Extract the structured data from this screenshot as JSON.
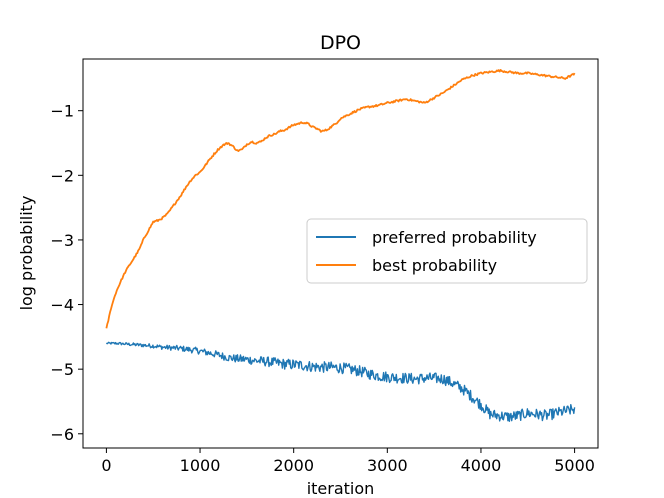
{
  "chart_data": {
    "type": "line",
    "title": "DPO",
    "xlabel": "iteration",
    "ylabel": "log probability",
    "xlim": [
      -250,
      5250
    ],
    "ylim": [
      -6.22,
      -0.2
    ],
    "xticks": [
      0,
      1000,
      2000,
      3000,
      4000,
      5000
    ],
    "xtick_labels": [
      "0",
      "1000",
      "2000",
      "3000",
      "4000",
      "5000"
    ],
    "yticks": [
      -1,
      -2,
      -3,
      -4,
      -5,
      -6
    ],
    "ytick_labels": [
      "−1",
      "−2",
      "−3",
      "−4",
      "−5",
      "−6"
    ],
    "grid": false,
    "legend_position": "center-right",
    "series": [
      {
        "name": "preferred probability",
        "color": "#1f77b4",
        "noisy": true,
        "x": [
          0,
          100,
          200,
          300,
          400,
          500,
          600,
          700,
          800,
          900,
          1000,
          1100,
          1200,
          1300,
          1400,
          1500,
          1600,
          1700,
          1800,
          1900,
          2000,
          2100,
          2200,
          2300,
          2400,
          2500,
          2600,
          2700,
          2800,
          2900,
          3000,
          3100,
          3200,
          3300,
          3400,
          3500,
          3600,
          3700,
          3800,
          3900,
          4000,
          4100,
          4200,
          4300,
          4400,
          4500,
          4600,
          4700,
          4800,
          4900,
          5000
        ],
        "y": [
          -4.6,
          -4.6,
          -4.61,
          -4.62,
          -4.63,
          -4.64,
          -4.66,
          -4.67,
          -4.68,
          -4.7,
          -4.72,
          -4.75,
          -4.78,
          -4.82,
          -4.84,
          -4.85,
          -4.87,
          -4.88,
          -4.9,
          -4.92,
          -4.93,
          -4.94,
          -4.96,
          -4.97,
          -4.97,
          -4.98,
          -5.0,
          -5.03,
          -5.07,
          -5.1,
          -5.12,
          -5.13,
          -5.14,
          -5.15,
          -5.14,
          -5.14,
          -5.15,
          -5.22,
          -5.3,
          -5.42,
          -5.55,
          -5.7,
          -5.72,
          -5.74,
          -5.72,
          -5.68,
          -5.7,
          -5.72,
          -5.68,
          -5.65,
          -5.62
        ]
      },
      {
        "name": "best probability",
        "color": "#ff7f0e",
        "noisy": false,
        "x": [
          0,
          50,
          100,
          150,
          200,
          250,
          300,
          350,
          400,
          450,
          500,
          550,
          600,
          650,
          700,
          750,
          800,
          850,
          900,
          950,
          1000,
          1050,
          1100,
          1150,
          1200,
          1250,
          1300,
          1350,
          1400,
          1450,
          1500,
          1550,
          1600,
          1650,
          1700,
          1750,
          1800,
          1850,
          1900,
          1950,
          2000,
          2050,
          2100,
          2150,
          2200,
          2250,
          2300,
          2350,
          2400,
          2450,
          2500,
          2600,
          2700,
          2800,
          2900,
          3000,
          3100,
          3200,
          3300,
          3400,
          3500,
          3600,
          3700,
          3800,
          3900,
          4000,
          4100,
          4200,
          4300,
          4400,
          4500,
          4600,
          4700,
          4800,
          4900,
          5000
        ],
        "y": [
          -4.38,
          -4.05,
          -3.82,
          -3.65,
          -3.5,
          -3.38,
          -3.27,
          -3.15,
          -2.98,
          -2.85,
          -2.72,
          -2.7,
          -2.66,
          -2.6,
          -2.5,
          -2.4,
          -2.3,
          -2.18,
          -2.08,
          -2.0,
          -1.95,
          -1.86,
          -1.76,
          -1.67,
          -1.59,
          -1.53,
          -1.5,
          -1.55,
          -1.62,
          -1.6,
          -1.52,
          -1.48,
          -1.5,
          -1.48,
          -1.42,
          -1.38,
          -1.36,
          -1.32,
          -1.3,
          -1.26,
          -1.22,
          -1.2,
          -1.18,
          -1.2,
          -1.25,
          -1.28,
          -1.32,
          -1.3,
          -1.25,
          -1.2,
          -1.12,
          -1.05,
          -0.98,
          -0.94,
          -0.92,
          -0.88,
          -0.85,
          -0.82,
          -0.85,
          -0.88,
          -0.8,
          -0.72,
          -0.62,
          -0.52,
          -0.46,
          -0.42,
          -0.4,
          -0.38,
          -0.4,
          -0.42,
          -0.42,
          -0.44,
          -0.46,
          -0.48,
          -0.5,
          -0.43
        ]
      }
    ]
  }
}
